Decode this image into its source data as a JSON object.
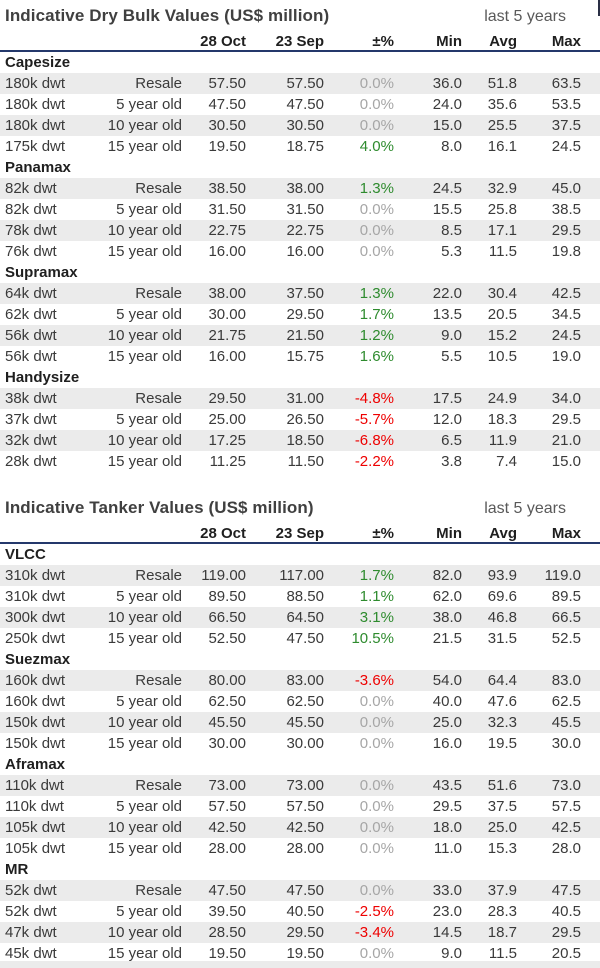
{
  "colors": {
    "header_underline": "#24386b",
    "positive_change": "#2e8b2e",
    "negative_change": "#ee0000",
    "no_change": "#a6a6a6",
    "row_shade": "#ebebeb"
  },
  "tables": [
    {
      "title": "Indicative Dry Bulk Values (US$ million)",
      "period_label": "last 5 years",
      "columns": [
        "28 Oct",
        "23 Sep",
        "±%",
        "Min",
        "Avg",
        "Max"
      ],
      "groups": [
        {
          "name": "Capesize",
          "rows": [
            {
              "size": "180k dwt",
              "age": "Resale",
              "current": "57.50",
              "previous": "57.50",
              "pct": "0.0%",
              "trend": "flat",
              "min": "36.0",
              "avg": "51.8",
              "max": "63.5"
            },
            {
              "size": "180k dwt",
              "age": "5 year old",
              "current": "47.50",
              "previous": "47.50",
              "pct": "0.0%",
              "trend": "flat",
              "min": "24.0",
              "avg": "35.6",
              "max": "53.5"
            },
            {
              "size": "180k dwt",
              "age": "10 year old",
              "current": "30.50",
              "previous": "30.50",
              "pct": "0.0%",
              "trend": "flat",
              "min": "15.0",
              "avg": "25.5",
              "max": "37.5"
            },
            {
              "size": "175k dwt",
              "age": "15 year old",
              "current": "19.50",
              "previous": "18.75",
              "pct": "4.0%",
              "trend": "up",
              "min": "8.0",
              "avg": "16.1",
              "max": "24.5"
            }
          ]
        },
        {
          "name": "Panamax",
          "rows": [
            {
              "size": "82k dwt",
              "age": "Resale",
              "current": "38.50",
              "previous": "38.00",
              "pct": "1.3%",
              "trend": "up",
              "min": "24.5",
              "avg": "32.9",
              "max": "45.0"
            },
            {
              "size": "82k dwt",
              "age": "5 year old",
              "current": "31.50",
              "previous": "31.50",
              "pct": "0.0%",
              "trend": "flat",
              "min": "15.5",
              "avg": "25.8",
              "max": "38.5"
            },
            {
              "size": "78k dwt",
              "age": "10 year old",
              "current": "22.75",
              "previous": "22.75",
              "pct": "0.0%",
              "trend": "flat",
              "min": "8.5",
              "avg": "17.1",
              "max": "29.5"
            },
            {
              "size": "76k dwt",
              "age": "15 year old",
              "current": "16.00",
              "previous": "16.00",
              "pct": "0.0%",
              "trend": "flat",
              "min": "5.3",
              "avg": "11.5",
              "max": "19.8"
            }
          ]
        },
        {
          "name": "Supramax",
          "rows": [
            {
              "size": "64k dwt",
              "age": "Resale",
              "current": "38.00",
              "previous": "37.50",
              "pct": "1.3%",
              "trend": "up",
              "min": "22.0",
              "avg": "30.4",
              "max": "42.5"
            },
            {
              "size": "62k dwt",
              "age": "5 year old",
              "current": "30.00",
              "previous": "29.50",
              "pct": "1.7%",
              "trend": "up",
              "min": "13.5",
              "avg": "20.5",
              "max": "34.5"
            },
            {
              "size": "56k dwt",
              "age": "10 year old",
              "current": "21.75",
              "previous": "21.50",
              "pct": "1.2%",
              "trend": "up",
              "min": "9.0",
              "avg": "15.2",
              "max": "24.5"
            },
            {
              "size": "56k dwt",
              "age": "15 year old",
              "current": "16.00",
              "previous": "15.75",
              "pct": "1.6%",
              "trend": "up",
              "min": "5.5",
              "avg": "10.5",
              "max": "19.0"
            }
          ]
        },
        {
          "name": "Handysize",
          "rows": [
            {
              "size": "38k dwt",
              "age": "Resale",
              "current": "29.50",
              "previous": "31.00",
              "pct": "-4.8%",
              "trend": "down",
              "min": "17.5",
              "avg": "24.9",
              "max": "34.0"
            },
            {
              "size": "37k dwt",
              "age": "5 year old",
              "current": "25.00",
              "previous": "26.50",
              "pct": "-5.7%",
              "trend": "down",
              "min": "12.0",
              "avg": "18.3",
              "max": "29.5"
            },
            {
              "size": "32k dwt",
              "age": "10 year old",
              "current": "17.25",
              "previous": "18.50",
              "pct": "-6.8%",
              "trend": "down",
              "min": "6.5",
              "avg": "11.9",
              "max": "21.0"
            },
            {
              "size": "28k dwt",
              "age": "15 year old",
              "current": "11.25",
              "previous": "11.50",
              "pct": "-2.2%",
              "trend": "down",
              "min": "3.8",
              "avg": "7.4",
              "max": "15.0"
            }
          ]
        }
      ]
    },
    {
      "title": "Indicative Tanker Values (US$ million)",
      "period_label": "last 5 years",
      "columns": [
        "28 Oct",
        "23 Sep",
        "±%",
        "Min",
        "Avg",
        "Max"
      ],
      "groups": [
        {
          "name": "VLCC",
          "rows": [
            {
              "size": "310k dwt",
              "age": "Resale",
              "current": "119.00",
              "previous": "117.00",
              "pct": "1.7%",
              "trend": "up",
              "min": "82.0",
              "avg": "93.9",
              "max": "119.0"
            },
            {
              "size": "310k dwt",
              "age": "5 year old",
              "current": "89.50",
              "previous": "88.50",
              "pct": "1.1%",
              "trend": "up",
              "min": "62.0",
              "avg": "69.6",
              "max": "89.5"
            },
            {
              "size": "300k dwt",
              "age": "10 year old",
              "current": "66.50",
              "previous": "64.50",
              "pct": "3.1%",
              "trend": "up",
              "min": "38.0",
              "avg": "46.8",
              "max": "66.5"
            },
            {
              "size": "250k dwt",
              "age": "15 year old",
              "current": "52.50",
              "previous": "47.50",
              "pct": "10.5%",
              "trend": "up",
              "min": "21.5",
              "avg": "31.5",
              "max": "52.5"
            }
          ]
        },
        {
          "name": "Suezmax",
          "rows": [
            {
              "size": "160k dwt",
              "age": "Resale",
              "current": "80.00",
              "previous": "83.00",
              "pct": "-3.6%",
              "trend": "down",
              "min": "54.0",
              "avg": "64.4",
              "max": "83.0"
            },
            {
              "size": "160k dwt",
              "age": "5 year old",
              "current": "62.50",
              "previous": "62.50",
              "pct": "0.0%",
              "trend": "flat",
              "min": "40.0",
              "avg": "47.6",
              "max": "62.5"
            },
            {
              "size": "150k dwt",
              "age": "10 year old",
              "current": "45.50",
              "previous": "45.50",
              "pct": "0.0%",
              "trend": "flat",
              "min": "25.0",
              "avg": "32.3",
              "max": "45.5"
            },
            {
              "size": "150k dwt",
              "age": "15 year old",
              "current": "30.00",
              "previous": "30.00",
              "pct": "0.0%",
              "trend": "flat",
              "min": "16.0",
              "avg": "19.5",
              "max": "30.0"
            }
          ]
        },
        {
          "name": "Aframax",
          "rows": [
            {
              "size": "110k dwt",
              "age": "Resale",
              "current": "73.00",
              "previous": "73.00",
              "pct": "0.0%",
              "trend": "flat",
              "min": "43.5",
              "avg": "51.6",
              "max": "73.0"
            },
            {
              "size": "110k dwt",
              "age": "5 year old",
              "current": "57.50",
              "previous": "57.50",
              "pct": "0.0%",
              "trend": "flat",
              "min": "29.5",
              "avg": "37.5",
              "max": "57.5"
            },
            {
              "size": "105k dwt",
              "age": "10 year old",
              "current": "42.50",
              "previous": "42.50",
              "pct": "0.0%",
              "trend": "flat",
              "min": "18.0",
              "avg": "25.0",
              "max": "42.5"
            },
            {
              "size": "105k dwt",
              "age": "15 year old",
              "current": "28.00",
              "previous": "28.00",
              "pct": "0.0%",
              "trend": "flat",
              "min": "11.0",
              "avg": "15.3",
              "max": "28.0"
            }
          ]
        },
        {
          "name": "MR",
          "rows": [
            {
              "size": "52k dwt",
              "age": "Resale",
              "current": "47.50",
              "previous": "47.50",
              "pct": "0.0%",
              "trend": "flat",
              "min": "33.0",
              "avg": "37.9",
              "max": "47.5"
            },
            {
              "size": "52k dwt",
              "age": "5 year old",
              "current": "39.50",
              "previous": "40.50",
              "pct": "-2.5%",
              "trend": "down",
              "min": "23.0",
              "avg": "28.3",
              "max": "40.5"
            },
            {
              "size": "47k dwt",
              "age": "10 year old",
              "current": "28.50",
              "previous": "29.50",
              "pct": "-3.4%",
              "trend": "down",
              "min": "14.5",
              "avg": "18.7",
              "max": "29.5"
            },
            {
              "size": "45k dwt",
              "age": "15 year old",
              "current": "19.50",
              "previous": "19.50",
              "pct": "0.0%",
              "trend": "flat",
              "min": "9.0",
              "avg": "11.5",
              "max": "20.5"
            }
          ]
        }
      ]
    }
  ]
}
